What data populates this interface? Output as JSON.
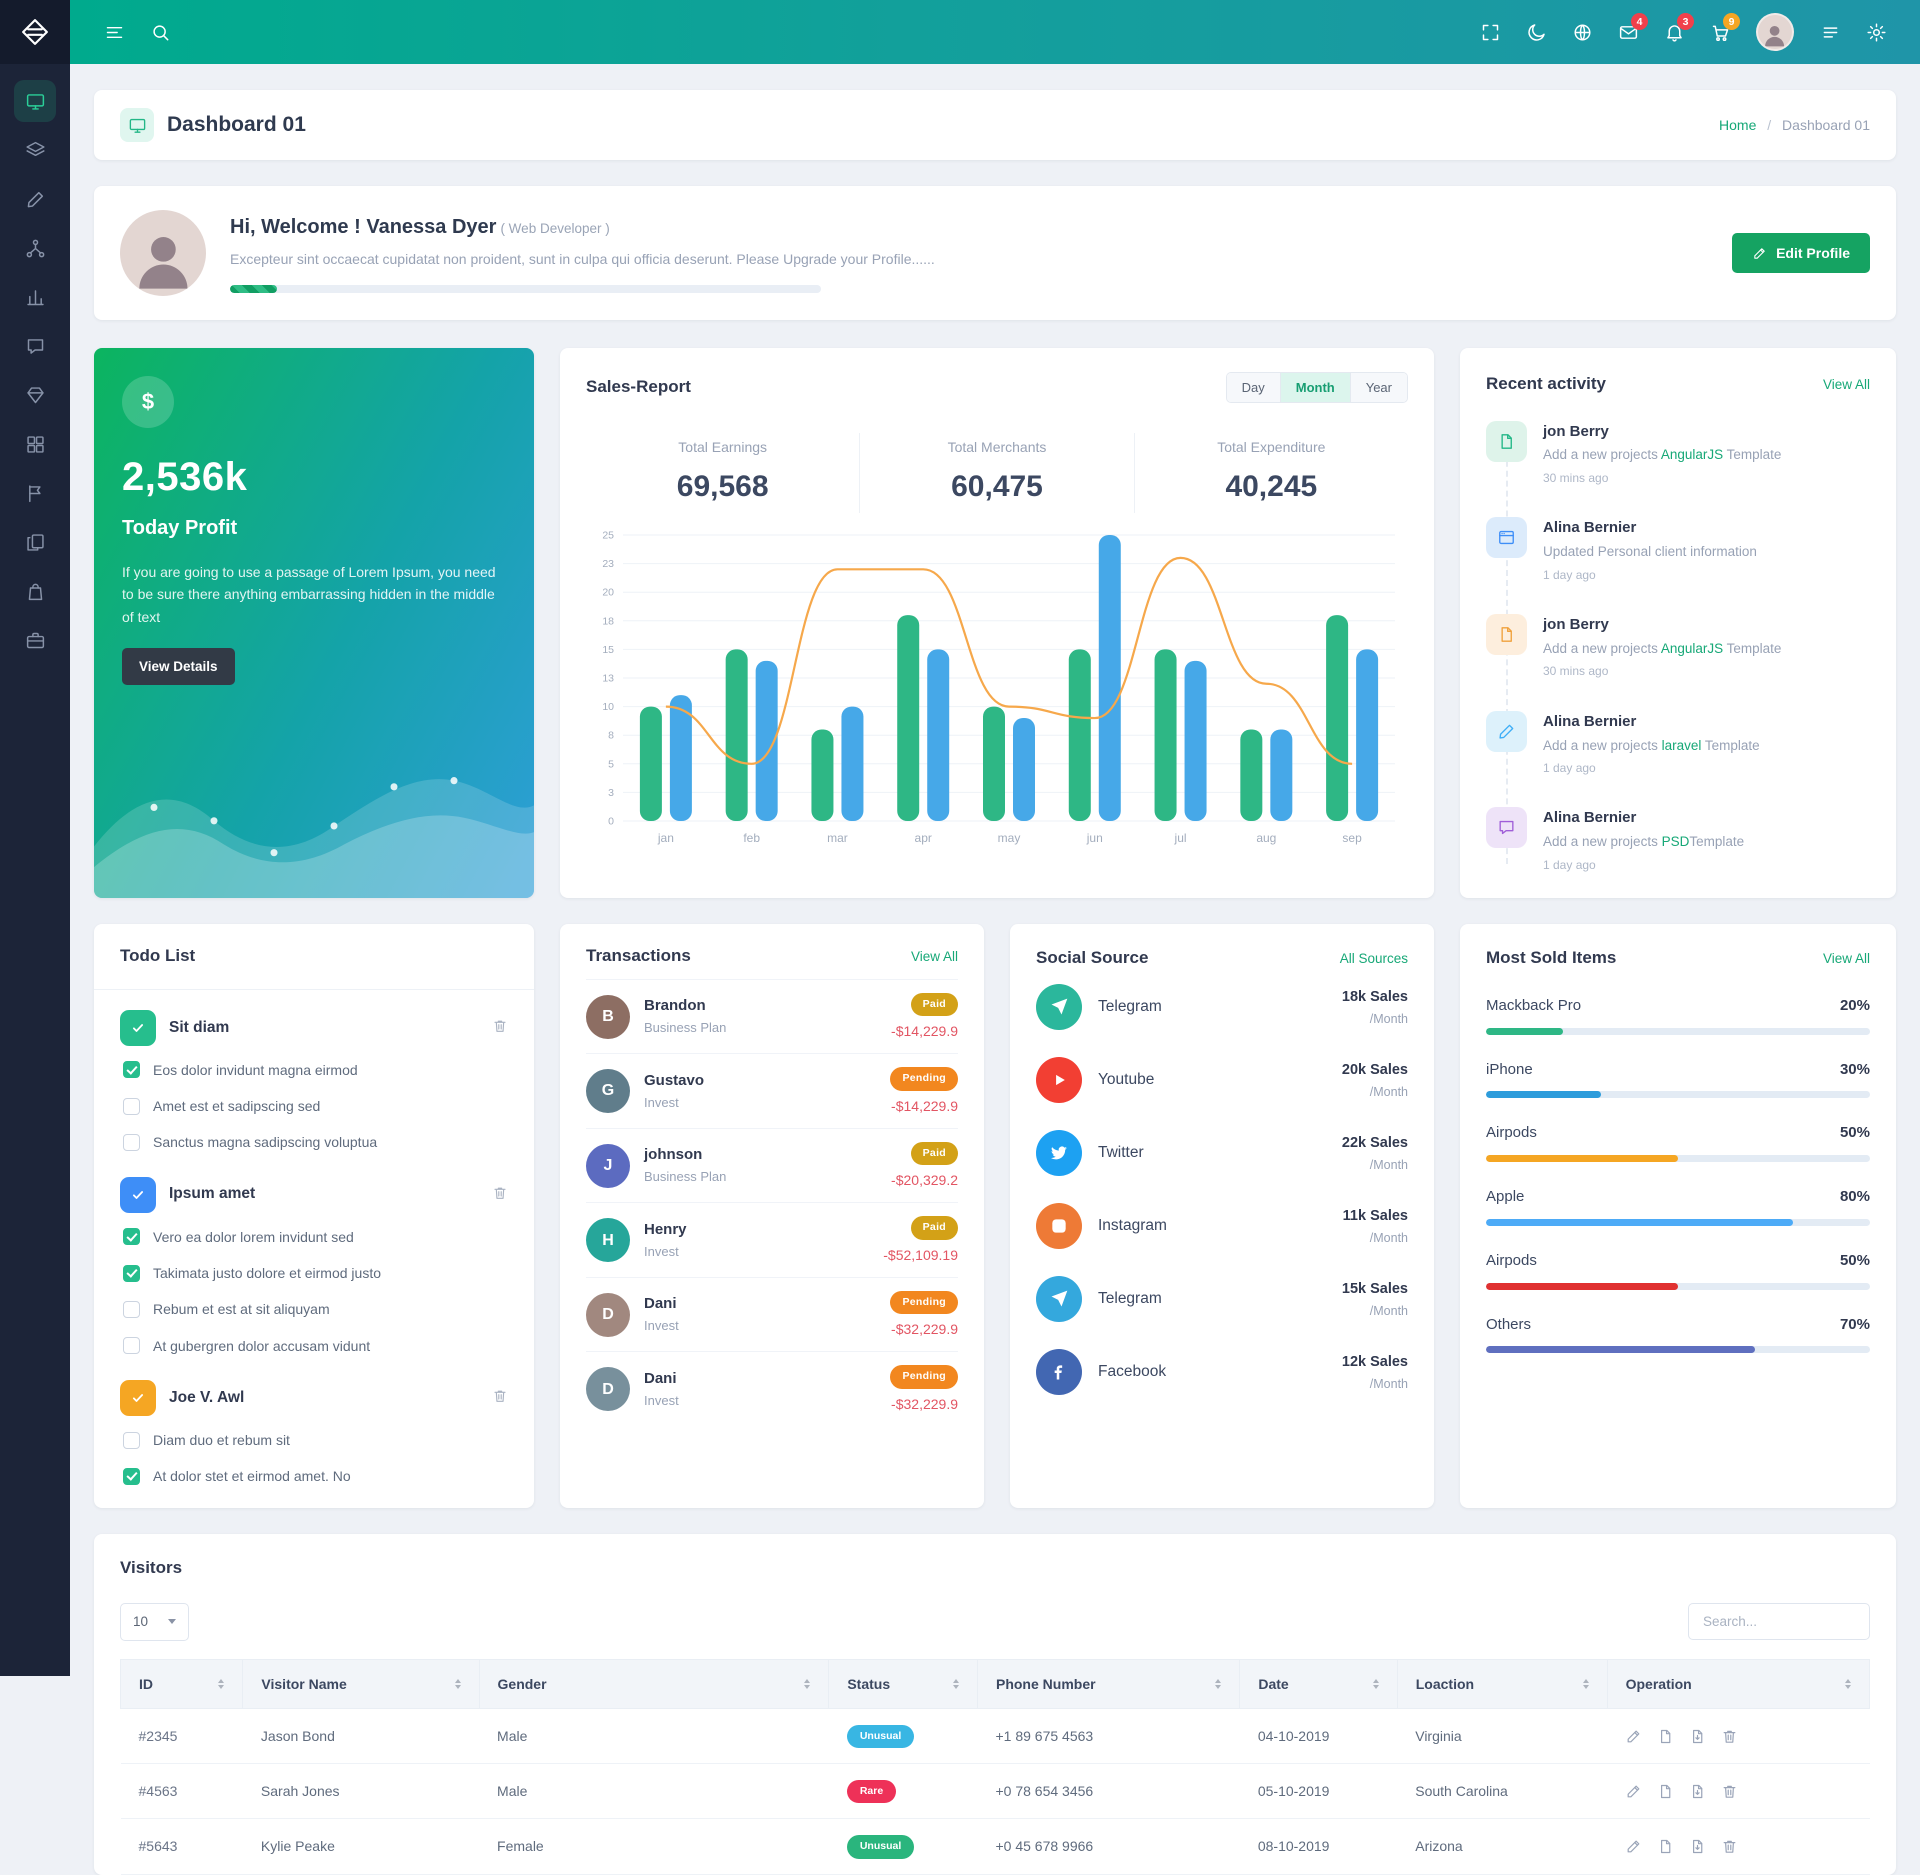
{
  "colors": {
    "accent_green": "#15a362",
    "navbar_gradient_start": "#00aa8d",
    "navbar_gradient_end": "#1f95a8",
    "sidebar_bg": "#1c2438",
    "badge_red": "#f1404b",
    "badge_amber": "#f5a623",
    "chart_green": "#2eb785",
    "chart_blue": "#46a8e8",
    "chart_line": "#f6a84b"
  },
  "topbar": {
    "icons": [
      "menu",
      "search",
      "fullscreen",
      "dark-mode",
      "language-globe",
      "messages",
      "notifications",
      "cart",
      "profile-avatar",
      "preferences-list",
      "settings-gear"
    ],
    "mail_count": "4",
    "alert_count": "3",
    "cart_count": "9"
  },
  "sidebar": {
    "items": [
      {
        "name": "dashboard",
        "icon": "#i-monitor",
        "active": true
      },
      {
        "name": "layers",
        "icon": "#i-layers",
        "active": false
      },
      {
        "name": "design",
        "icon": "#i-brush",
        "active": false
      },
      {
        "name": "network",
        "icon": "#i-sitemap",
        "active": false
      },
      {
        "name": "charts",
        "icon": "#i-chart",
        "active": false
      },
      {
        "name": "messages",
        "icon": "#i-chat",
        "active": false
      },
      {
        "name": "widgets",
        "icon": "#i-gem",
        "active": false
      },
      {
        "name": "apps",
        "icon": "#i-grid",
        "active": false
      },
      {
        "name": "pages",
        "icon": "#i-flag",
        "active": false
      },
      {
        "name": "documents",
        "icon": "#i-copy",
        "active": false
      },
      {
        "name": "shop",
        "icon": "#i-bag",
        "active": false
      },
      {
        "name": "work",
        "icon": "#i-briefcase",
        "active": false
      }
    ]
  },
  "page": {
    "title": "Dashboard 01",
    "breadcrumb_home": "Home",
    "breadcrumb_sep": "/",
    "breadcrumb_current": "Dashboard 01"
  },
  "welcome": {
    "title": "Hi, Welcome ! Vanessa Dyer",
    "role": "( Web Developer )",
    "message": "Excepteur sint occaecat cupidatat non proident, sunt in culpa qui officia deserunt. Please Upgrade your Profile......",
    "progress": "8%",
    "edit_button": "Edit Profile"
  },
  "profit": {
    "currency_symbol": "$",
    "amount": "2,536k",
    "label": "Today Profit",
    "description": "If you are going to use a passage of Lorem Ipsum, you need to be sure there anything embarrassing hidden in the middle of text",
    "button": "View Details"
  },
  "sales": {
    "title": "Sales-Report",
    "ranges": [
      {
        "label": "Day",
        "active": false
      },
      {
        "label": "Month",
        "active": true
      },
      {
        "label": "Year",
        "active": false
      }
    ],
    "stats": [
      {
        "label": "Total Earnings",
        "value": "69,568"
      },
      {
        "label": "Total Merchants",
        "value": "60,475"
      },
      {
        "label": "Total Expenditure",
        "value": "40,245"
      }
    ]
  },
  "chart_data": {
    "type": "bar",
    "title": "Sales-Report",
    "categories": [
      "jan",
      "feb",
      "mar",
      "apr",
      "may",
      "jun",
      "jul",
      "aug",
      "sep"
    ],
    "series": [
      {
        "name": "series-green",
        "color": "#2eb785",
        "values": [
          10,
          15,
          8,
          18,
          10,
          15,
          15,
          8,
          18
        ]
      },
      {
        "name": "series-blue",
        "color": "#46a8e8",
        "values": [
          11,
          14,
          10,
          15,
          9,
          25,
          14,
          8,
          15
        ]
      }
    ],
    "line": {
      "name": "trend",
      "color": "#f6a84b",
      "values": [
        10,
        5,
        22,
        22,
        10,
        9,
        23,
        12,
        5
      ]
    },
    "ylim": [
      0,
      25
    ],
    "y_ticks": [
      "0",
      "3",
      "5",
      "8",
      "10",
      "13",
      "15",
      "18",
      "20",
      "23",
      "25"
    ],
    "grid": true,
    "legend": false
  },
  "activity": {
    "title": "Recent activity",
    "view_all": "View All",
    "items": [
      {
        "tint": "green",
        "icon": "#i-file",
        "name": "jon Berry",
        "pre": "Add a new projects ",
        "hl": "AngularJS",
        "post": " Template",
        "time": "30 mins ago"
      },
      {
        "tint": "blue",
        "icon": "#i-window",
        "name": "Alina Bernier",
        "pre": "Updated Personal client information",
        "hl": "",
        "post": "",
        "time": "1 day ago"
      },
      {
        "tint": "orange",
        "icon": "#i-file",
        "name": "jon Berry",
        "pre": "Add a new projects ",
        "hl": "AngularJS",
        "post": " Template",
        "time": "30 mins ago"
      },
      {
        "tint": "sky",
        "icon": "#i-brush",
        "name": "Alina Bernier",
        "pre": "Add a new projects ",
        "hl": "laravel",
        "post": " Template",
        "time": "1 day ago"
      },
      {
        "tint": "purple",
        "icon": "#i-chat",
        "name": "Alina Bernier",
        "pre": "Add a new projects ",
        "hl": "PSD",
        "post": "Template",
        "time": "1 day ago"
      }
    ]
  },
  "todo": {
    "title": "Todo List",
    "groups": [
      {
        "tint": "green",
        "name": "Sit diam",
        "tasks": [
          {
            "label": "Eos dolor invidunt magna eirmod",
            "checked": true
          },
          {
            "label": "Amet est et sadipscing sed",
            "checked": false
          },
          {
            "label": "Sanctus magna sadipscing voluptua",
            "checked": false
          }
        ]
      },
      {
        "tint": "blue",
        "name": "Ipsum amet",
        "tasks": [
          {
            "label": "Vero ea dolor lorem invidunt sed",
            "checked": true
          },
          {
            "label": "Takimata justo dolore et eirmod justo",
            "checked": true
          },
          {
            "label": "Rebum et est at sit aliquyam",
            "checked": false
          },
          {
            "label": "At gubergren dolor accusam vidunt",
            "checked": false
          }
        ]
      },
      {
        "tint": "orange",
        "name": "Joe V. Awl",
        "tasks": [
          {
            "label": "Diam duo et rebum sit",
            "checked": false
          },
          {
            "label": "At dolor stet et eirmod amet. No",
            "checked": true
          }
        ]
      }
    ]
  },
  "transactions": {
    "title": "Transactions",
    "view_all": "View All",
    "rows": [
      {
        "initial": "B",
        "avatar_bg": "#8d6e63",
        "name": "Brandon",
        "plan": "Business Plan",
        "status": "Paid",
        "variant": "paid",
        "amount": "-$14,229.9"
      },
      {
        "initial": "G",
        "avatar_bg": "#607d8b",
        "name": "Gustavo",
        "plan": "Invest",
        "status": "Pending",
        "variant": "pending",
        "amount": "-$14,229.9"
      },
      {
        "initial": "J",
        "avatar_bg": "#5c6bc0",
        "name": "johnson",
        "plan": "Business Plan",
        "status": "Paid",
        "variant": "paid",
        "amount": "-$20,329.2"
      },
      {
        "initial": "H",
        "avatar_bg": "#26a69a",
        "name": "Henry",
        "plan": "Invest",
        "status": "Paid",
        "variant": "paid",
        "amount": "-$52,109.19"
      },
      {
        "initial": "D",
        "avatar_bg": "#a1887f",
        "name": "Dani",
        "plan": "Invest",
        "status": "Pending",
        "variant": "pending",
        "amount": "-$32,229.9"
      },
      {
        "initial": "D",
        "avatar_bg": "#78909c",
        "name": "Dani",
        "plan": "Invest",
        "status": "Pending",
        "variant": "pending",
        "amount": "-$32,229.9"
      }
    ]
  },
  "social": {
    "title": "Social Source",
    "link": "All Sources",
    "rows": [
      {
        "icon": "#i-plane",
        "color": "#2bb79c",
        "name": "Telegram",
        "sales": "18k Sales",
        "period": "/Month"
      },
      {
        "icon": "#i-play",
        "color": "#f23f33",
        "name": "Youtube",
        "sales": "20k Sales",
        "period": "/Month"
      },
      {
        "icon": "#i-twitter",
        "color": "#1da1f2",
        "name": "Twitter",
        "sales": "22k Sales",
        "period": "/Month"
      },
      {
        "icon": "#i-camera",
        "color": "#ee7a36",
        "name": "Instagram",
        "sales": "11k Sales",
        "period": "/Month"
      },
      {
        "icon": "#i-plane",
        "color": "#34a8dd",
        "name": "Telegram",
        "sales": "15k Sales",
        "period": "/Month"
      },
      {
        "icon": "#i-facebook",
        "color": "#4267b2",
        "name": "Facebook",
        "sales": "12k Sales",
        "period": "/Month"
      }
    ]
  },
  "most_sold": {
    "title": "Most Sold Items",
    "view_all": "View All",
    "items": [
      {
        "name": "Mackback Pro",
        "pct": "20%",
        "color": "#2eb785"
      },
      {
        "name": "iPhone",
        "pct": "30%",
        "color": "#2d9cdb"
      },
      {
        "name": "Airpods",
        "pct": "50%",
        "color": "#f5a623"
      },
      {
        "name": "Apple",
        "pct": "80%",
        "color": "#4dabf7"
      },
      {
        "name": "Airpods",
        "pct": "50%",
        "color": "#e03131"
      },
      {
        "name": "Others",
        "pct": "70%",
        "color": "#5f6fbf"
      }
    ]
  },
  "visitors": {
    "title": "Visitors",
    "page_size": "10",
    "search_placeholder": "Search...",
    "columns": [
      "ID",
      "Visitor Name",
      "Gender",
      "Status",
      "Phone Number",
      "Date",
      "Loaction",
      "Operation"
    ],
    "rows": [
      {
        "id": "#2345",
        "name": "Jason Bond",
        "gender": "Male",
        "status": "Unusual",
        "variant": "blue",
        "phone": "+1 89 675 4563",
        "date": "04-10-2019",
        "location": "Virginia"
      },
      {
        "id": "#4563",
        "name": "Sarah Jones",
        "gender": "Male",
        "status": "Rare",
        "variant": "red",
        "phone": "+0 78 654 3456",
        "date": "05-10-2019",
        "location": "South Carolina"
      },
      {
        "id": "#5643",
        "name": "Kylie Peake",
        "gender": "Female",
        "status": "Unusual",
        "variant": "green",
        "phone": "+0 45 678 9966",
        "date": "08-10-2019",
        "location": "Arizona"
      }
    ]
  }
}
